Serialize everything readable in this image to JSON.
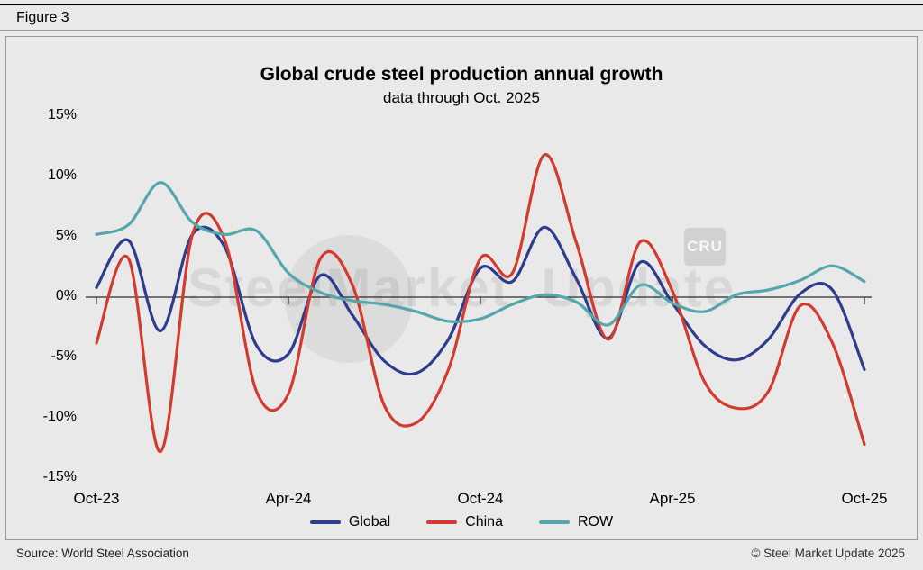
{
  "page": {
    "figure_label": "Figure 3",
    "source": "Source: World Steel Association",
    "copyright": "© Steel Market Update 2025"
  },
  "watermark": {
    "text_primary": "SteelMarket",
    "text_secondary": "Update",
    "badge": "CRU"
  },
  "chart_data": {
    "type": "line",
    "title": "Global crude steel production annual growth",
    "subtitle": "data through Oct. 2025",
    "x": [
      "Oct-23",
      "Nov-23",
      "Dec-23",
      "Jan-24",
      "Feb-24",
      "Mar-24",
      "Apr-24",
      "May-24",
      "Jun-24",
      "Jul-24",
      "Aug-24",
      "Sep-24",
      "Oct-24",
      "Nov-24",
      "Dec-24",
      "Jan-25",
      "Feb-25",
      "Mar-25",
      "Apr-25",
      "May-25",
      "Jun-25",
      "Jul-25",
      "Aug-25",
      "Sep-25",
      "Oct-25"
    ],
    "series": [
      {
        "name": "Global",
        "color": "#2e3c8e",
        "values": [
          0.8,
          4.7,
          -2.8,
          5.2,
          4.2,
          -4.0,
          -4.7,
          1.8,
          -1.5,
          -5.3,
          -6.3,
          -3.5,
          2.4,
          1.3,
          5.8,
          1.5,
          -3.4,
          2.9,
          -0.5,
          -4.0,
          -5.2,
          -3.5,
          0.3,
          0.6,
          -6.0
        ]
      },
      {
        "name": "China",
        "color": "#d23b2e",
        "values": [
          -3.8,
          3.2,
          -12.8,
          5.2,
          4.8,
          -7.8,
          -8.0,
          3.2,
          1.0,
          -9.0,
          -10.4,
          -6.0,
          3.2,
          2.0,
          11.8,
          4.5,
          -3.5,
          4.6,
          0.5,
          -7.0,
          -9.2,
          -7.8,
          -0.7,
          -3.8,
          -12.2
        ]
      },
      {
        "name": "ROW",
        "color": "#55a7ab",
        "values": [
          5.2,
          6.0,
          9.5,
          6.2,
          5.2,
          5.5,
          2.0,
          0.4,
          -0.3,
          -0.6,
          -1.2,
          -2.0,
          -1.8,
          -0.6,
          0.2,
          -0.4,
          -2.3,
          1.0,
          -0.5,
          -1.2,
          0.2,
          0.6,
          1.4,
          2.6,
          1.3
        ]
      }
    ],
    "ylim": [
      -15,
      15
    ],
    "ytick_values": [
      15,
      10,
      5,
      0,
      -5,
      -10,
      -15
    ],
    "ytick_labels": [
      "15%",
      "10%",
      "5%",
      "0%",
      "-5%",
      "-10%",
      "-15%"
    ],
    "xtick_indices": [
      0,
      6,
      12,
      18,
      24
    ],
    "xtick_labels": [
      "Oct-23",
      "Apr-24",
      "Oct-24",
      "Apr-25",
      "Oct-25"
    ],
    "grid": false,
    "axis_line_at_zero": true,
    "legend_position": "bottom"
  }
}
